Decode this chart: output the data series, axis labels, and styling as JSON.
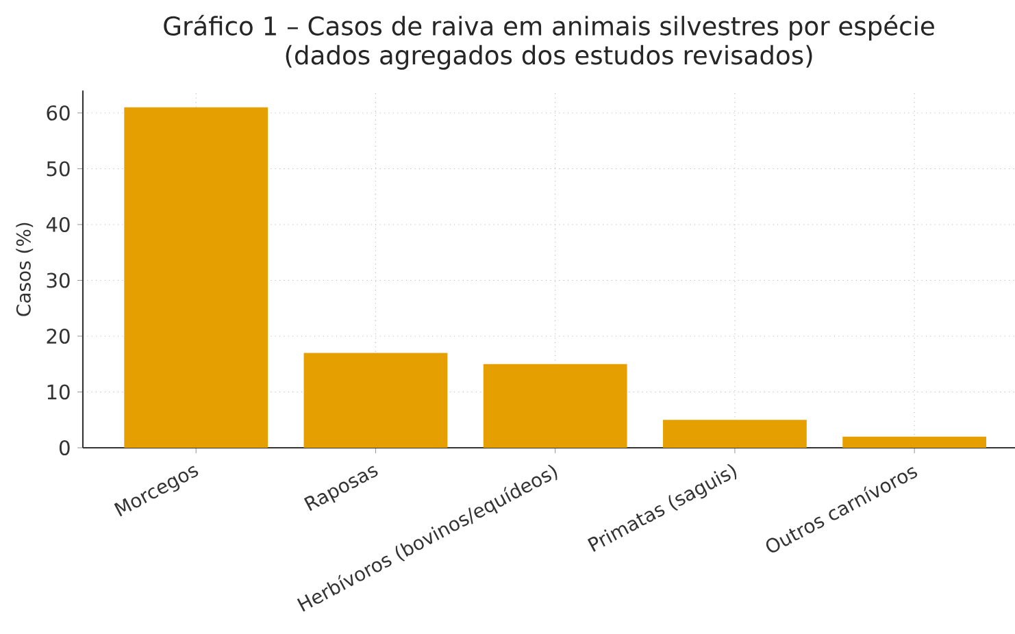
{
  "chart_data": {
    "type": "bar",
    "title": "Gráfico 1 – Casos de raiva em animais silvestres por espécie\n(dados agregados dos estudos revisados)",
    "categories": [
      "Morcegos",
      "Raposas",
      "Herbívoros (bovinos/equídeos)",
      "Primatas (saguis)",
      "Outros carnívoros"
    ],
    "values": [
      61,
      17,
      15,
      5,
      2
    ],
    "color": "#e69f00",
    "ylabel": "Casos (%)",
    "ylim": [
      0,
      64
    ],
    "yticks": [
      0,
      10,
      20,
      30,
      40,
      50,
      60
    ],
    "grid": true
  }
}
